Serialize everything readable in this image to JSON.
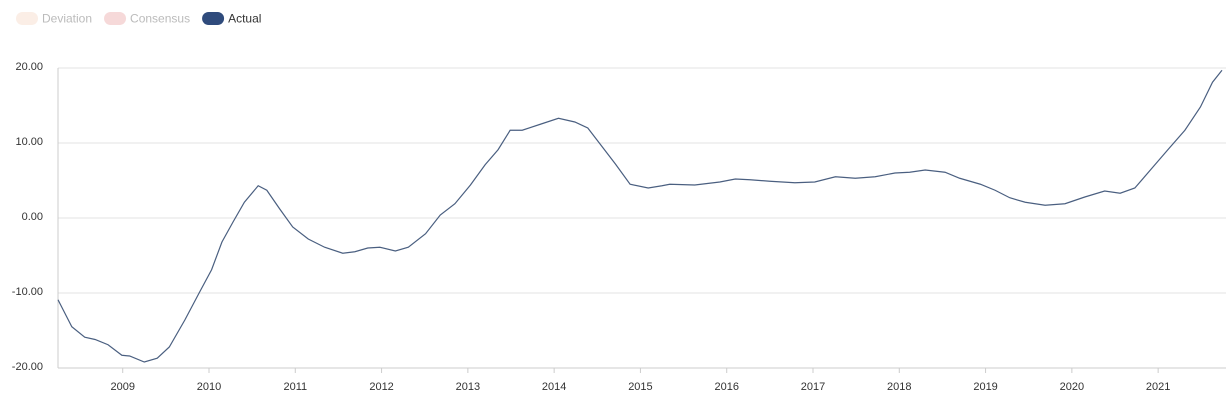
{
  "chart_data": {
    "type": "line",
    "legend": [
      {
        "name": "Deviation",
        "color": "#fbeee6",
        "hidden": true
      },
      {
        "name": "Consensus",
        "color": "#f6d9d9",
        "hidden": true
      },
      {
        "name": "Actual",
        "color": "#2f4b7c",
        "hidden": false
      }
    ],
    "x": [
      2008.25,
      2008.41,
      2008.56,
      2008.68,
      2008.83,
      2008.99,
      2009.08,
      2009.25,
      2009.4,
      2009.54,
      2009.72,
      2009.89,
      2010.03,
      2010.15,
      2010.28,
      2010.41,
      2010.57,
      2010.67,
      2010.82,
      2010.97,
      2011.15,
      2011.34,
      2011.55,
      2011.69,
      2011.84,
      2011.98,
      2012.16,
      2012.31,
      2012.51,
      2012.68,
      2012.85,
      2013.03,
      2013.2,
      2013.35,
      2013.49,
      2013.63,
      2013.84,
      2014.05,
      2014.24,
      2014.39,
      2014.53,
      2014.71,
      2014.88,
      2015.09,
      2015.25,
      2015.34,
      2015.63,
      2015.92,
      2016.1,
      2016.27,
      2016.5,
      2016.79,
      2017.02,
      2017.26,
      2017.49,
      2017.72,
      2017.95,
      2018.12,
      2018.3,
      2018.53,
      2018.7,
      2018.94,
      2019.11,
      2019.28,
      2019.46,
      2019.69,
      2019.92,
      2020.15,
      2020.38,
      2020.56,
      2020.73,
      2020.91,
      2021.12,
      2021.31,
      2021.49,
      2021.63,
      2021.74
    ],
    "series": [
      {
        "name": "Actual",
        "color": "#4a5f80",
        "values": [
          -10.9,
          -14.5,
          -15.9,
          -16.2,
          -16.9,
          -18.3,
          -18.4,
          -19.2,
          -18.7,
          -17.2,
          -13.6,
          -9.9,
          -6.9,
          -3.2,
          -0.5,
          2.1,
          4.3,
          3.7,
          1.2,
          -1.2,
          -2.8,
          -3.9,
          -4.7,
          -4.5,
          -4.0,
          -3.9,
          -4.4,
          -3.9,
          -2.1,
          0.4,
          1.9,
          4.4,
          7.1,
          9.1,
          11.7,
          11.7,
          12.5,
          13.3,
          12.8,
          12.0,
          9.9,
          7.2,
          4.5,
          4.0,
          4.3,
          4.5,
          4.4,
          4.8,
          5.2,
          5.1,
          4.9,
          4.7,
          4.8,
          5.5,
          5.3,
          5.5,
          6.0,
          6.1,
          6.4,
          6.1,
          5.3,
          4.5,
          3.7,
          2.7,
          2.1,
          1.7,
          1.9,
          2.8,
          3.6,
          3.3,
          4.0,
          6.4,
          9.2,
          11.7,
          14.8,
          18.1,
          19.7
        ]
      }
    ],
    "xlim": [
      2008.25,
      2021.74
    ],
    "xticks": [
      2009,
      2010,
      2011,
      2012,
      2013,
      2014,
      2015,
      2016,
      2017,
      2018,
      2019,
      2020,
      2021
    ],
    "ylim": [
      -20,
      20
    ],
    "yticks": [
      {
        "value": -20,
        "label": "-20.00"
      },
      {
        "value": -10,
        "label": "-10.00"
      },
      {
        "value": 0,
        "label": "0.00"
      },
      {
        "value": 10,
        "label": "10.00"
      },
      {
        "value": 20,
        "label": "20.00"
      }
    ],
    "grid": true
  }
}
